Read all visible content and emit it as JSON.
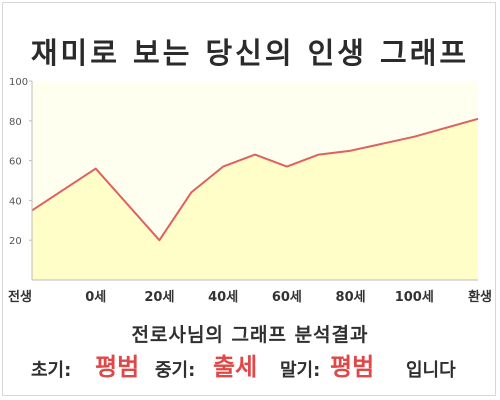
{
  "title": "재미로 보는 당신의 인생 그래프",
  "summary": {
    "heading": "전로사님의 그래프 분석결과",
    "early_label": "초기:",
    "early_value": "평범",
    "mid_label": "중기:",
    "mid_value": "출세",
    "late_label": "말기:",
    "late_value": "평범",
    "ending": "입니다"
  },
  "colors": {
    "line": "#e06060",
    "fill": "#fffdc8",
    "plot_bg": "#fffff0",
    "highlight": "#e04848"
  },
  "chart_data": {
    "type": "area",
    "title": "재미로 보는 당신의 인생 그래프",
    "xlabel": "",
    "ylabel": "",
    "ylim": [
      0,
      100
    ],
    "yticks": [
      20,
      40,
      60,
      80,
      100
    ],
    "grid": false,
    "categories": [
      "전생",
      "0세",
      "20세",
      "40세",
      "60세",
      "80세",
      "100세",
      "환생"
    ],
    "series": [
      {
        "x": [
          -20,
          0,
          20,
          30,
          40,
          50,
          60,
          70,
          80,
          100,
          120
        ],
        "values": [
          35,
          56,
          20,
          44,
          57,
          63,
          57,
          63,
          65,
          72,
          81
        ]
      }
    ]
  }
}
